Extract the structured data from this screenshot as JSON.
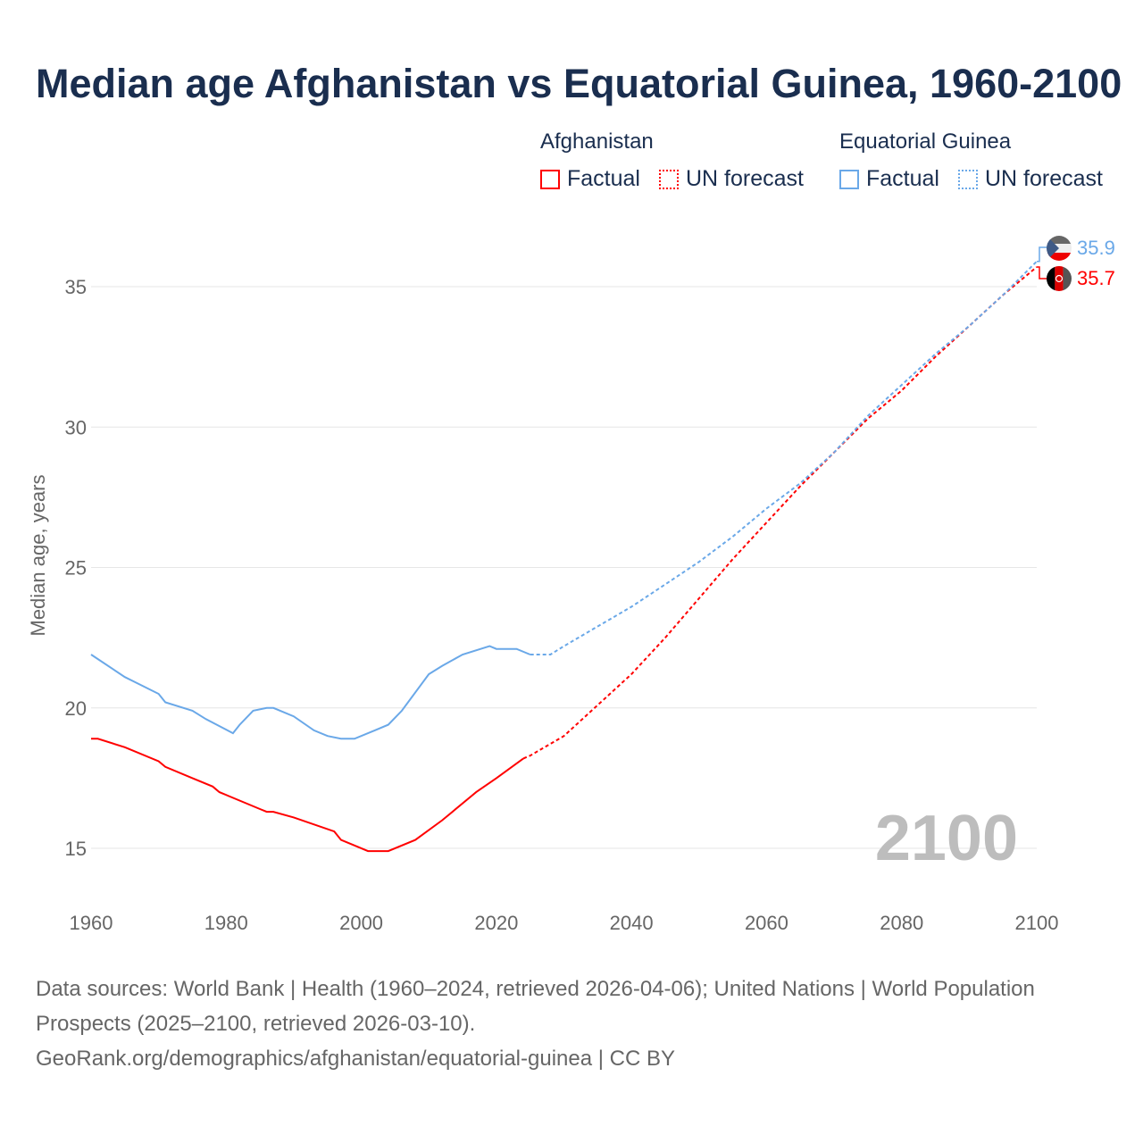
{
  "title": "Median age Afghanistan vs Equatorial Guinea, 1960-2100",
  "legend": {
    "groups": [
      {
        "name": "Afghanistan",
        "color": "#ff0000",
        "items": [
          "Factual",
          "UN forecast"
        ]
      },
      {
        "name": "Equatorial Guinea",
        "color": "#6aa8e8",
        "items": [
          "Factual",
          "UN forecast"
        ]
      }
    ]
  },
  "source_lines": [
    "Data sources: World Bank | Health (1960–2024, retrieved 2026-04-06); United Nations | World Population Prospects (2025–2100, retrieved 2026-03-10).",
    "GeoRank.org/demographics/afghanistan/equatorial-guinea | CC BY"
  ],
  "chart_data": {
    "type": "line",
    "title": "Median age Afghanistan vs Equatorial Guinea, 1960-2100",
    "xlabel": "",
    "ylabel": "Median age, years",
    "xlim": [
      1960,
      2100
    ],
    "ylim": [
      13.5,
      37
    ],
    "xticks": [
      1960,
      1980,
      2000,
      2020,
      2040,
      2060,
      2080,
      2100
    ],
    "yticks": [
      15,
      20,
      25,
      30,
      35
    ],
    "grid": true,
    "year_watermark": "2100",
    "end_labels": {
      "Equatorial Guinea": "35.9",
      "Afghanistan": "35.7"
    },
    "series": [
      {
        "name": "Afghanistan",
        "part": "Factual",
        "color": "#ff0000",
        "dash": false,
        "x": [
          1960,
          1961,
          1965,
          1970,
          1971,
          1975,
          1978,
          1979,
          1985,
          1986,
          1987,
          1990,
          1996,
          1997,
          2001,
          2004,
          2008,
          2012,
          2017,
          2020,
          2024
        ],
        "y": [
          18.9,
          18.9,
          18.6,
          18.1,
          17.9,
          17.5,
          17.2,
          17.0,
          16.4,
          16.3,
          16.3,
          16.1,
          15.6,
          15.3,
          14.9,
          14.9,
          15.3,
          16.0,
          17.0,
          17.5,
          18.2
        ]
      },
      {
        "name": "Afghanistan",
        "part": "UN forecast",
        "color": "#ff0000",
        "dash": true,
        "x": [
          2024,
          2025,
          2030,
          2035,
          2040,
          2045,
          2050,
          2055,
          2060,
          2065,
          2070,
          2075,
          2080,
          2085,
          2090,
          2095,
          2100
        ],
        "y": [
          18.2,
          18.3,
          19.0,
          20.1,
          21.2,
          22.5,
          23.9,
          25.3,
          26.6,
          27.9,
          29.1,
          30.3,
          31.3,
          32.5,
          33.6,
          34.7,
          35.7
        ]
      },
      {
        "name": "Equatorial Guinea",
        "part": "Factual",
        "color": "#6aa8e8",
        "dash": false,
        "x": [
          1960,
          1965,
          1970,
          1971,
          1975,
          1977,
          1981,
          1982,
          1984,
          1986,
          1987,
          1990,
          1993,
          1995,
          1997,
          1999,
          2002,
          2004,
          2006,
          2010,
          2012,
          2015,
          2019,
          2020,
          2023,
          2025
        ],
        "y": [
          21.9,
          21.1,
          20.5,
          20.2,
          19.9,
          19.6,
          19.1,
          19.4,
          19.9,
          20.0,
          20.0,
          19.7,
          19.2,
          19.0,
          18.9,
          18.9,
          19.2,
          19.4,
          19.9,
          21.2,
          21.5,
          21.9,
          22.2,
          22.1,
          22.1,
          21.9
        ]
      },
      {
        "name": "Equatorial Guinea",
        "part": "UN forecast",
        "color": "#6aa8e8",
        "dash": true,
        "x": [
          2025,
          2028,
          2030,
          2035,
          2040,
          2045,
          2050,
          2055,
          2060,
          2065,
          2070,
          2075,
          2080,
          2085,
          2090,
          2095,
          2100
        ],
        "y": [
          21.9,
          21.9,
          22.2,
          22.9,
          23.6,
          24.4,
          25.2,
          26.1,
          27.1,
          28.0,
          29.1,
          30.4,
          31.5,
          32.6,
          33.6,
          34.7,
          35.9
        ]
      }
    ]
  }
}
